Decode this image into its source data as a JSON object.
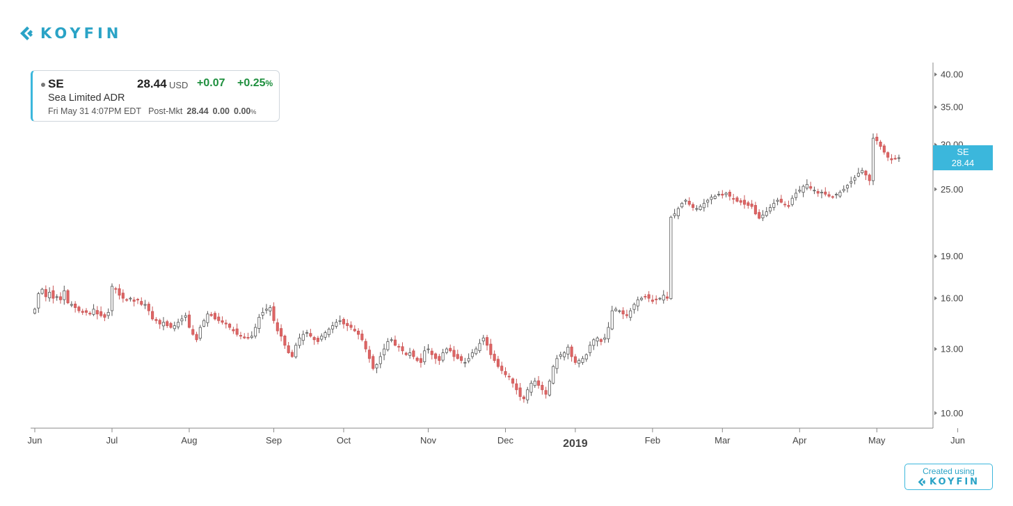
{
  "brand": {
    "logo_text": "KOYFIN",
    "accent_color": "#3bb7dc"
  },
  "quote": {
    "ticker": "SE",
    "price": "28.44",
    "currency": "USD",
    "change": "+0.07",
    "change_pct": "+0.25",
    "pct_symbol": "%",
    "name": "Sea Limited ADR",
    "timestamp": "Fri May 31 4:07PM EDT",
    "post_label": "Post-Mkt",
    "post_price": "28.44",
    "post_change": "0.00",
    "post_change_pct": "0.00",
    "post_pct_symbol": "%"
  },
  "last_price_badge": {
    "ticker": "SE",
    "price": "28.44",
    "value": 28.44
  },
  "footer": {
    "created_label": "Created using",
    "logo_text": "KOYFIN"
  },
  "chart_data": {
    "type": "candlestick",
    "title": "",
    "xlabel": "",
    "ylabel": "",
    "y_scale": "log",
    "ylim": [
      9.4,
      42.0
    ],
    "y_ticks": [
      {
        "value": 10,
        "label": "10.00"
      },
      {
        "value": 13,
        "label": "13.00"
      },
      {
        "value": 16,
        "label": "16.00"
      },
      {
        "value": 19,
        "label": "19.00"
      },
      {
        "value": 25,
        "label": "25.00"
      },
      {
        "value": 30,
        "label": "30.00"
      },
      {
        "value": 35,
        "label": "35.00"
      },
      {
        "value": 40,
        "label": "40.00"
      }
    ],
    "x_ticks": [
      {
        "label": "Jun",
        "bar": 0,
        "bold": false
      },
      {
        "label": "Jul",
        "bar": 21,
        "bold": false
      },
      {
        "label": "Aug",
        "bar": 42,
        "bold": false
      },
      {
        "label": "Sep",
        "bar": 65,
        "bold": false
      },
      {
        "label": "Oct",
        "bar": 84,
        "bold": false
      },
      {
        "label": "Nov",
        "bar": 107,
        "bold": false
      },
      {
        "label": "Dec",
        "bar": 128,
        "bold": false
      },
      {
        "label": "2019",
        "bar": 147,
        "bold": true
      },
      {
        "label": "Feb",
        "bar": 168,
        "bold": false
      },
      {
        "label": "Mar",
        "bar": 187,
        "bold": false
      },
      {
        "label": "Apr",
        "bar": 208,
        "bold": false
      },
      {
        "label": "May",
        "bar": 229,
        "bold": false
      },
      {
        "label": "Jun",
        "bar": 251,
        "bold": false
      }
    ],
    "up_color": "#ffffff",
    "down_color": "#e06666",
    "grid": false,
    "close_series": [
      15.3,
      16.3,
      16.6,
      16.1,
      16.4,
      16.0,
      16.1,
      15.9,
      16.5,
      15.7,
      15.6,
      15.4,
      15.2,
      15.1,
      15.1,
      15.0,
      15.3,
      15.0,
      14.9,
      14.8,
      15.1,
      16.8,
      16.6,
      16.2,
      16.0,
      15.9,
      16.0,
      15.8,
      15.9,
      15.6,
      15.6,
      15.2,
      14.7,
      14.6,
      14.4,
      14.5,
      14.3,
      14.2,
      14.3,
      14.5,
      14.7,
      14.9,
      14.2,
      13.8,
      13.5,
      14.2,
      14.6,
      15.0,
      14.9,
      14.7,
      14.6,
      14.5,
      14.4,
      14.2,
      14.0,
      13.8,
      13.7,
      13.6,
      13.6,
      13.7,
      14.2,
      14.8,
      15.1,
      15.3,
      15.4,
      14.6,
      14.0,
      13.7,
      13.2,
      12.8,
      12.6,
      13.2,
      13.6,
      13.8,
      13.9,
      13.7,
      13.5,
      13.4,
      13.7,
      13.9,
      14.1,
      14.3,
      14.5,
      14.6,
      14.4,
      14.3,
      14.2,
      14.0,
      13.8,
      13.5,
      13.0,
      12.5,
      12.0,
      12.2,
      12.6,
      13.0,
      13.4,
      13.5,
      13.2,
      13.1,
      12.9,
      12.7,
      12.8,
      12.6,
      12.4,
      12.3,
      12.9,
      13.0,
      12.7,
      12.5,
      12.4,
      12.8,
      13.0,
      12.9,
      12.6,
      12.5,
      12.4,
      12.3,
      12.5,
      12.8,
      13.0,
      13.3,
      13.6,
      13.2,
      12.7,
      12.4,
      12.1,
      11.9,
      11.7,
      11.6,
      11.3,
      11.0,
      10.7,
      10.6,
      11.0,
      11.3,
      11.4,
      11.2,
      11.0,
      10.8,
      11.4,
      12.1,
      12.5,
      12.7,
      12.8,
      13.1,
      12.6,
      12.3,
      12.4,
      12.5,
      12.7,
      13.2,
      13.5,
      13.6,
      13.4,
      13.6,
      14.2,
      15.2,
      15.3,
      15.2,
      15.0,
      14.9,
      15.2,
      15.6,
      15.9,
      16.0,
      16.1,
      16.0,
      15.8,
      15.9,
      16.0,
      16.2,
      16.0,
      22.3,
      22.6,
      23.1,
      23.6,
      23.9,
      23.5,
      23.2,
      23.1,
      23.3,
      23.6,
      23.9,
      24.2,
      24.3,
      24.5,
      24.4,
      24.6,
      24.3,
      24.0,
      23.8,
      23.7,
      23.5,
      23.4,
      23.3,
      22.6,
      22.2,
      22.5,
      22.8,
      23.2,
      23.6,
      23.9,
      23.7,
      23.5,
      23.3,
      24.1,
      24.6,
      24.9,
      25.3,
      25.5,
      25.1,
      24.9,
      24.6,
      24.7,
      24.5,
      24.3,
      24.2,
      24.5,
      24.7,
      25.0,
      25.4,
      25.8,
      26.2,
      26.7,
      27.0,
      26.5,
      25.9,
      30.8,
      30.5,
      29.8,
      29.1,
      28.5,
      28.2,
      28.37,
      28.44
    ]
  }
}
